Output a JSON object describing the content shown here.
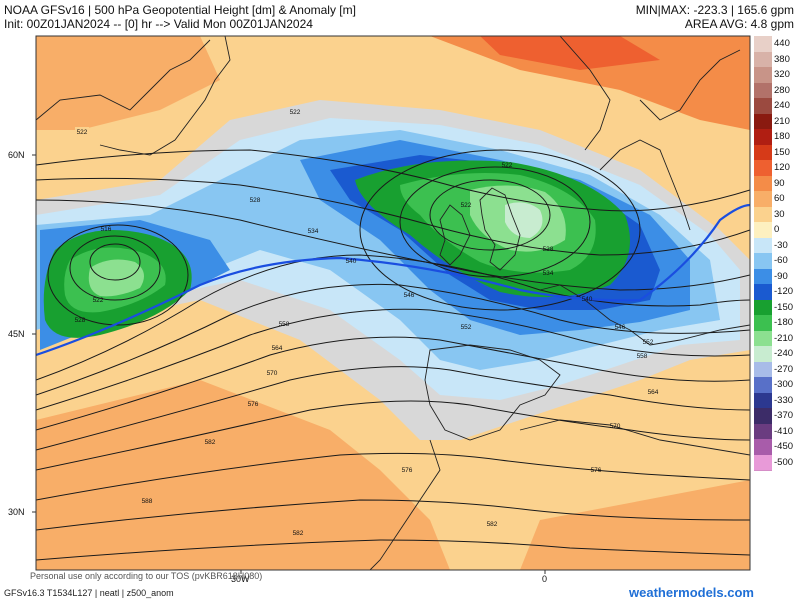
{
  "header": {
    "title": "NOAA GFSv16 | 500 hPa Geopotential Height [dm] & Anomaly [m]",
    "init": "Init: 00Z01JAN2024 -- [0] hr --> Valid Mon 00Z01JAN2024",
    "minmax": "MIN|MAX: -223.3 | 165.6 gpm",
    "area_avg": "AREA AVG: 4.8 gpm"
  },
  "axes": {
    "lat_labels": [
      "60N",
      "45N",
      "30N"
    ],
    "lon_labels": [
      "30W",
      "0"
    ]
  },
  "contour_labels": [
    "522",
    "522",
    "522",
    "516",
    "522",
    "528",
    "528",
    "534",
    "540",
    "546",
    "552",
    "558",
    "564",
    "570",
    "576",
    "582",
    "588",
    "522",
    "528",
    "534",
    "540",
    "546",
    "552",
    "558",
    "564",
    "570",
    "576",
    "582"
  ],
  "legend": {
    "entries": [
      {
        "label": "440",
        "color": "#e8d0c8"
      },
      {
        "label": "380",
        "color": "#d8b2a8"
      },
      {
        "label": "320",
        "color": "#c89488"
      },
      {
        "label": "280",
        "color": "#b2726a"
      },
      {
        "label": "240",
        "color": "#9b4a40"
      },
      {
        "label": "210",
        "color": "#8a1a10"
      },
      {
        "label": "180",
        "color": "#b01e12"
      },
      {
        "label": "150",
        "color": "#d63a18"
      },
      {
        "label": "120",
        "color": "#ee6030"
      },
      {
        "label": "90",
        "color": "#f48c48"
      },
      {
        "label": "60",
        "color": "#f8ae68"
      },
      {
        "label": "30",
        "color": "#fbd28e"
      },
      {
        "label": "0",
        "color": "#fdf0c0"
      },
      {
        "label": "-30",
        "color": "#c8e6f8"
      },
      {
        "label": "-60",
        "color": "#88c6f2"
      },
      {
        "label": "-90",
        "color": "#3c8ee6"
      },
      {
        "label": "-120",
        "color": "#1a5ad0"
      },
      {
        "label": "-150",
        "color": "#18a030"
      },
      {
        "label": "-180",
        "color": "#3cc050"
      },
      {
        "label": "-210",
        "color": "#8ce090"
      },
      {
        "label": "-240",
        "color": "#c8ecd0"
      },
      {
        "label": "-270",
        "color": "#a8bce8"
      },
      {
        "label": "-300",
        "color": "#5870c8"
      },
      {
        "label": "-330",
        "color": "#2c3890"
      },
      {
        "label": "-370",
        "color": "#3c2c68"
      },
      {
        "label": "-410",
        "color": "#6a3c80"
      },
      {
        "label": "-450",
        "color": "#a85caa"
      },
      {
        "label": "-500",
        "color": "#e89ad8"
      }
    ]
  },
  "footer": {
    "model": "GFSv16.3 T1534L127 | neatl | z500_anom",
    "tos": "Personal use only according to our TOS (pvKBR618H080)",
    "brand": "weathermodels.com"
  }
}
